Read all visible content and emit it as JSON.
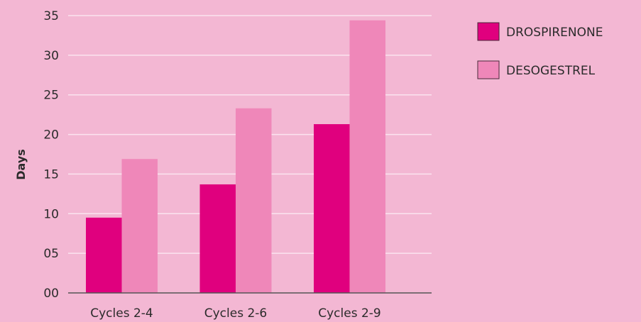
{
  "chart_data": {
    "type": "bar",
    "title": "",
    "xlabel": "",
    "ylabel": "Days",
    "ylim": [
      0,
      35
    ],
    "yticks": [
      0,
      5,
      10,
      15,
      20,
      25,
      30,
      35
    ],
    "ytick_labels": [
      "00",
      "05",
      "10",
      "15",
      "20",
      "25",
      "30",
      "35"
    ],
    "categories": [
      "Cycles 2-4",
      "Cycles 2-6",
      "Cycles 2-9"
    ],
    "series": [
      {
        "name": "DROSPIRENONE",
        "color": "#e0007e",
        "values": [
          9.5,
          13.7,
          21.3
        ]
      },
      {
        "name": "DESOGESTREL",
        "color": "#ef87b9",
        "values": [
          16.9,
          23.3,
          34.4
        ]
      }
    ],
    "grid": true,
    "legend_position": "top-right",
    "background_color": "#f3b7d3"
  }
}
